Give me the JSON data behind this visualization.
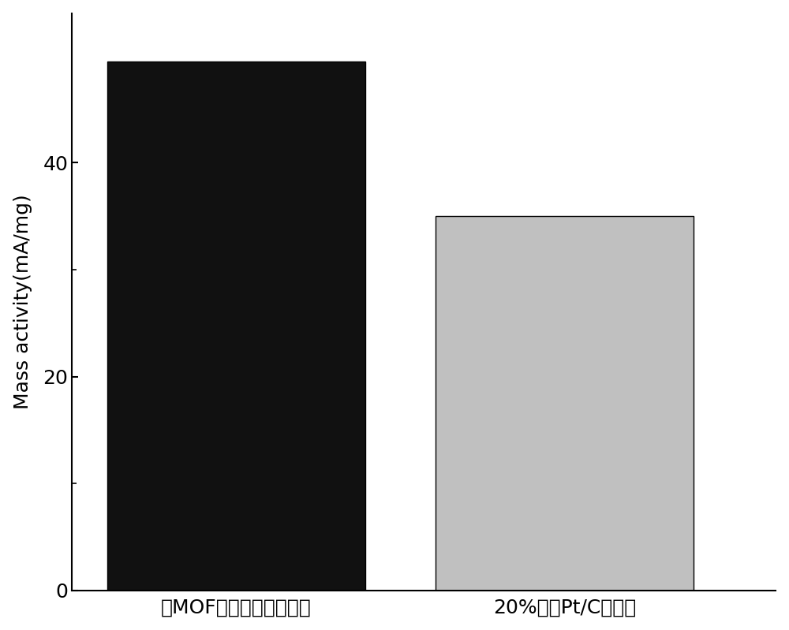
{
  "categories": [
    "以MOF为模板低铂催化剥",
    "20%商业Pt/C催化剥"
  ],
  "values": [
    49.5,
    35.0
  ],
  "bar_colors": [
    "#111111",
    "#c0c0c0"
  ],
  "bar_width": 0.55,
  "ylabel": "Mass activity(mA/mg)",
  "ylim": [
    0,
    54
  ],
  "yticks": [
    0,
    20,
    40
  ],
  "yticks_minor": [
    10,
    30
  ],
  "ylabel_fontsize": 18,
  "tick_fontsize": 18,
  "xlabel_fontsize": 18,
  "background_color": "#ffffff",
  "edge_color": "#000000"
}
